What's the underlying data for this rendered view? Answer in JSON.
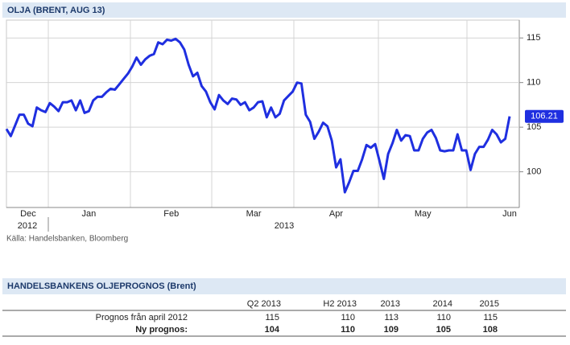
{
  "chart_data": {
    "type": "line",
    "title": "OLJA (BRENT, AUG 13)",
    "source": "Källa: Handelsbanken, Bloomberg",
    "years": [
      "2012",
      "2013"
    ],
    "categories": [
      null,
      null,
      null,
      null,
      null,
      "Dec",
      null,
      null,
      null,
      null,
      null,
      null,
      null,
      null,
      null,
      null,
      null,
      null,
      null,
      "Jan",
      null,
      null,
      null,
      null,
      null,
      null,
      null,
      null,
      null,
      null,
      null,
      null,
      null,
      null,
      null,
      null,
      null,
      null,
      "Feb",
      null,
      null,
      null,
      null,
      null,
      null,
      null,
      null,
      null,
      null,
      null,
      null,
      null,
      null,
      null,
      null,
      null,
      null,
      "Mar",
      null,
      null,
      null,
      null,
      null,
      null,
      null,
      null,
      null,
      null,
      null,
      null,
      null,
      null,
      null,
      null,
      null,
      null,
      "Apr",
      null,
      null,
      null,
      null,
      null,
      null,
      null,
      null,
      null,
      null,
      null,
      null,
      null,
      null,
      null,
      null,
      null,
      null,
      null,
      "May",
      null,
      null,
      null,
      null,
      null,
      null,
      null,
      null,
      null,
      null,
      null,
      null,
      null,
      null,
      null,
      null,
      null,
      null,
      null,
      "Jun"
    ],
    "series": [
      {
        "name": "Brent",
        "color": "#1f2fe0",
        "values": [
          104.8,
          104.0,
          105.2,
          106.4,
          106.4,
          105.4,
          105.1,
          107.2,
          106.9,
          106.7,
          107.7,
          107.3,
          106.8,
          107.8,
          107.8,
          108.0,
          106.9,
          108.0,
          106.6,
          106.8,
          108.0,
          108.4,
          108.4,
          108.9,
          109.3,
          109.2,
          109.8,
          110.4,
          111.0,
          111.8,
          112.8,
          112.0,
          112.6,
          113.0,
          113.2,
          114.5,
          114.3,
          114.8,
          114.7,
          114.9,
          114.5,
          113.7,
          112.0,
          110.7,
          111.1,
          109.6,
          109.0,
          107.8,
          107.0,
          108.6,
          108.0,
          107.6,
          108.2,
          108.1,
          107.5,
          107.8,
          106.9,
          107.2,
          107.8,
          107.9,
          106.1,
          107.2,
          106.1,
          106.5,
          108.0,
          108.5,
          109.0,
          110.0,
          109.9,
          106.4,
          105.6,
          103.7,
          104.5,
          105.5,
          105.1,
          103.5,
          100.5,
          101.4,
          97.7,
          98.8,
          100.1,
          100.1,
          101.4,
          103.0,
          102.7,
          103.1,
          101.2,
          99.2,
          102.0,
          103.2,
          104.7,
          103.5,
          104.1,
          104.0,
          102.4,
          102.4,
          103.7,
          104.4,
          104.7,
          103.8,
          102.4,
          102.3,
          102.4,
          102.4,
          104.2,
          102.4,
          102.4,
          100.2,
          102.0,
          102.8,
          102.8,
          103.6,
          104.7,
          104.2,
          103.3,
          103.7,
          106.21
        ]
      }
    ],
    "ylim": [
      96,
      117
    ],
    "yticks": [
      100,
      105,
      110,
      115
    ],
    "grid": true
  },
  "table": {
    "title": "HANDELSBANKENS OLJEPROGNOS (Brent)",
    "columns": [
      "Q2 2013",
      "H2 2013",
      "2013",
      "2014",
      "2015"
    ],
    "rows": [
      {
        "label": "Prognos från april 2012",
        "values": [
          115,
          110,
          113,
          110,
          115
        ]
      },
      {
        "label": "Ny prognos:",
        "values": [
          104,
          110,
          109,
          105,
          108
        ]
      }
    ]
  }
}
